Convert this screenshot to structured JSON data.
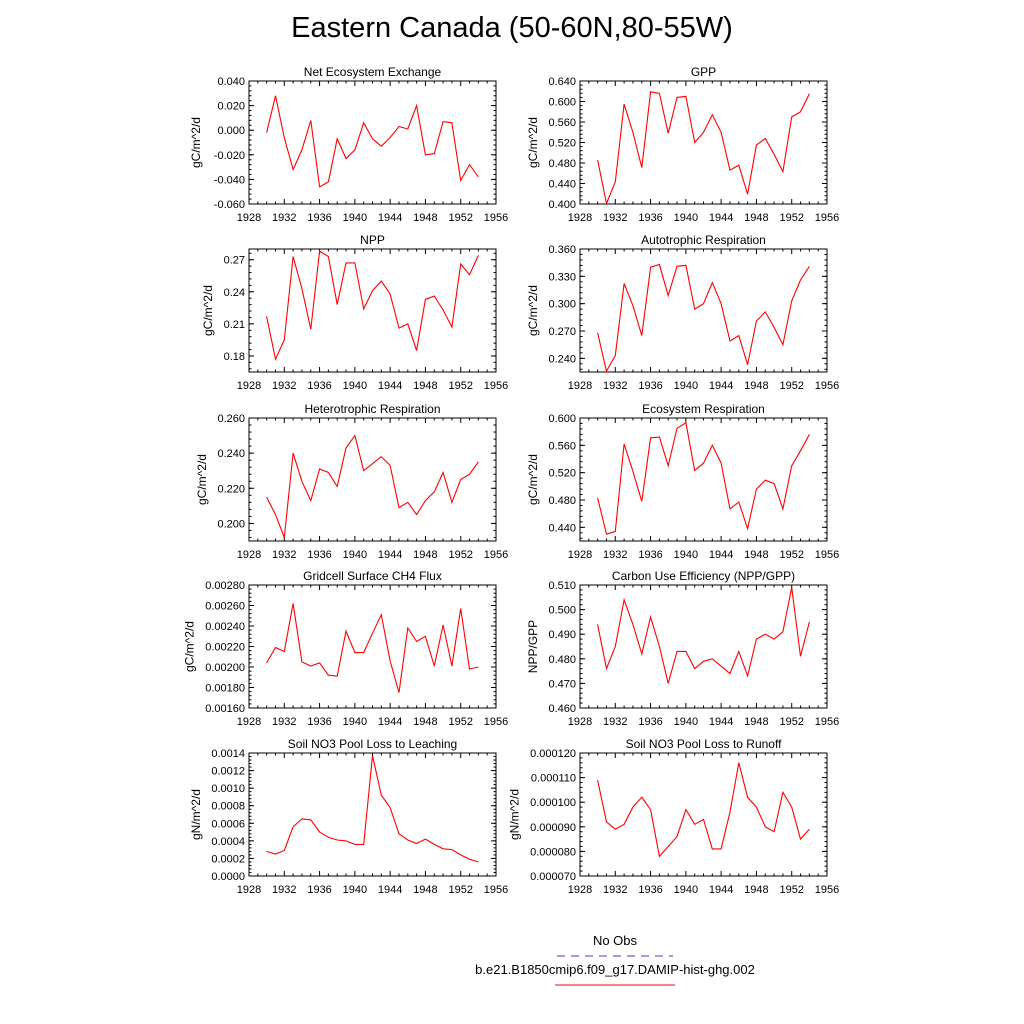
{
  "title": "Eastern Canada (50-60N,80-55W)",
  "legend": {
    "items": [
      {
        "label": "No Obs",
        "color": "#3b3bd6",
        "dash": true
      },
      {
        "label": "b.e21.B1850cmip6.f09_g17.DAMIP-hist-ghg.002",
        "color": "#ff0000",
        "dash": false
      }
    ]
  },
  "chart_data": [
    {
      "type": "line",
      "title": "Net Ecosystem Exchange",
      "xlabel": "",
      "ylabel": "gC/m^2/d",
      "xlim": [
        1928,
        1956
      ],
      "ylim": [
        -0.06,
        0.04
      ],
      "xticks": [
        1928,
        1932,
        1936,
        1940,
        1944,
        1948,
        1952,
        1956
      ],
      "yticks": [
        "-0.060",
        "-0.040",
        "-0.020",
        "0.000",
        "0.020",
        "0.040"
      ],
      "ytick_values": [
        -0.06,
        -0.04,
        -0.02,
        0.0,
        0.02,
        0.04
      ],
      "x": [
        1930,
        1931,
        1932,
        1933,
        1934,
        1935,
        1936,
        1937,
        1938,
        1939,
        1940,
        1941,
        1942,
        1943,
        1944,
        1945,
        1946,
        1947,
        1948,
        1949,
        1950,
        1951,
        1952,
        1953,
        1954
      ],
      "series": [
        {
          "color": "#ff0000",
          "values": [
            -0.002,
            0.028,
            -0.006,
            -0.032,
            -0.016,
            0.008,
            -0.046,
            -0.042,
            -0.007,
            -0.023,
            -0.016,
            0.006,
            -0.007,
            -0.013,
            -0.006,
            0.003,
            0.001,
            0.02,
            -0.02,
            -0.019,
            0.007,
            0.006,
            -0.041,
            -0.028,
            -0.038
          ]
        }
      ]
    },
    {
      "type": "line",
      "title": "GPP",
      "xlabel": "",
      "ylabel": "gC/m^2/d",
      "xlim": [
        1928,
        1956
      ],
      "ylim": [
        0.4,
        0.64
      ],
      "xticks": [
        1928,
        1932,
        1936,
        1940,
        1944,
        1948,
        1952,
        1956
      ],
      "yticks": [
        "0.400",
        "0.440",
        "0.480",
        "0.520",
        "0.560",
        "0.600",
        "0.640"
      ],
      "ytick_values": [
        0.4,
        0.44,
        0.48,
        0.52,
        0.56,
        0.6,
        0.64
      ],
      "x": [
        1930,
        1931,
        1932,
        1933,
        1934,
        1935,
        1936,
        1937,
        1938,
        1939,
        1940,
        1941,
        1942,
        1943,
        1944,
        1945,
        1946,
        1947,
        1948,
        1949,
        1950,
        1951,
        1952,
        1953,
        1954
      ],
      "series": [
        {
          "color": "#ff0000",
          "values": [
            0.486,
            0.401,
            0.443,
            0.595,
            0.54,
            0.471,
            0.619,
            0.616,
            0.538,
            0.608,
            0.61,
            0.52,
            0.54,
            0.574,
            0.54,
            0.466,
            0.476,
            0.419,
            0.515,
            0.528,
            0.497,
            0.463,
            0.57,
            0.58,
            0.615
          ]
        }
      ]
    },
    {
      "type": "line",
      "title": "NPP",
      "xlabel": "",
      "ylabel": "gC/m^2/d",
      "xlim": [
        1928,
        1956
      ],
      "ylim": [
        0.165,
        0.28
      ],
      "xticks": [
        1928,
        1932,
        1936,
        1940,
        1944,
        1948,
        1952,
        1956
      ],
      "yticks": [
        "0.18",
        "0.21",
        "0.24",
        "0.27"
      ],
      "ytick_values": [
        0.18,
        0.21,
        0.24,
        0.27
      ],
      "x": [
        1930,
        1931,
        1932,
        1933,
        1934,
        1935,
        1936,
        1937,
        1938,
        1939,
        1940,
        1941,
        1942,
        1943,
        1944,
        1945,
        1946,
        1947,
        1948,
        1949,
        1950,
        1951,
        1952,
        1953,
        1954
      ],
      "series": [
        {
          "color": "#ff0000",
          "values": [
            0.217,
            0.177,
            0.195,
            0.273,
            0.243,
            0.205,
            0.278,
            0.273,
            0.228,
            0.267,
            0.267,
            0.224,
            0.241,
            0.25,
            0.238,
            0.206,
            0.21,
            0.185,
            0.233,
            0.236,
            0.223,
            0.207,
            0.266,
            0.256,
            0.274
          ]
        }
      ]
    },
    {
      "type": "line",
      "title": "Autotrophic Respiration",
      "xlabel": "",
      "ylabel": "gC/m^2/d",
      "xlim": [
        1928,
        1956
      ],
      "ylim": [
        0.225,
        0.36
      ],
      "xticks": [
        1928,
        1932,
        1936,
        1940,
        1944,
        1948,
        1952,
        1956
      ],
      "yticks": [
        "0.240",
        "0.270",
        "0.300",
        "0.330",
        "0.360"
      ],
      "ytick_values": [
        0.24,
        0.27,
        0.3,
        0.33,
        0.36
      ],
      "x": [
        1930,
        1931,
        1932,
        1933,
        1934,
        1935,
        1936,
        1937,
        1938,
        1939,
        1940,
        1941,
        1942,
        1943,
        1944,
        1945,
        1946,
        1947,
        1948,
        1949,
        1950,
        1951,
        1952,
        1953,
        1954
      ],
      "series": [
        {
          "color": "#ff0000",
          "values": [
            0.268,
            0.226,
            0.243,
            0.322,
            0.298,
            0.265,
            0.34,
            0.343,
            0.309,
            0.341,
            0.342,
            0.294,
            0.3,
            0.323,
            0.3,
            0.259,
            0.265,
            0.233,
            0.281,
            0.291,
            0.274,
            0.255,
            0.303,
            0.326,
            0.341
          ]
        }
      ]
    },
    {
      "type": "line",
      "title": "Heterotrophic Respiration",
      "xlabel": "",
      "ylabel": "gC/m^2/d",
      "xlim": [
        1928,
        1956
      ],
      "ylim": [
        0.19,
        0.26
      ],
      "xticks": [
        1928,
        1932,
        1936,
        1940,
        1944,
        1948,
        1952,
        1956
      ],
      "yticks": [
        "0.200",
        "0.220",
        "0.240",
        "0.260"
      ],
      "ytick_values": [
        0.2,
        0.22,
        0.24,
        0.26
      ],
      "x": [
        1930,
        1931,
        1932,
        1933,
        1934,
        1935,
        1936,
        1937,
        1938,
        1939,
        1940,
        1941,
        1942,
        1943,
        1944,
        1945,
        1946,
        1947,
        1948,
        1949,
        1950,
        1951,
        1952,
        1953,
        1954
      ],
      "series": [
        {
          "color": "#ff0000",
          "values": [
            0.215,
            0.205,
            0.192,
            0.24,
            0.224,
            0.213,
            0.231,
            0.229,
            0.221,
            0.243,
            0.25,
            0.23,
            0.234,
            0.238,
            0.233,
            0.209,
            0.212,
            0.205,
            0.213,
            0.218,
            0.229,
            0.212,
            0.225,
            0.228,
            0.235
          ]
        }
      ]
    },
    {
      "type": "line",
      "title": "Ecosystem Respiration",
      "xlabel": "",
      "ylabel": "gC/m^2/d",
      "xlim": [
        1928,
        1956
      ],
      "ylim": [
        0.42,
        0.6
      ],
      "xticks": [
        1928,
        1932,
        1936,
        1940,
        1944,
        1948,
        1952,
        1956
      ],
      "yticks": [
        "0.440",
        "0.480",
        "0.520",
        "0.560",
        "0.600"
      ],
      "ytick_values": [
        0.44,
        0.48,
        0.52,
        0.56,
        0.6
      ],
      "x": [
        1930,
        1931,
        1932,
        1933,
        1934,
        1935,
        1936,
        1937,
        1938,
        1939,
        1940,
        1941,
        1942,
        1943,
        1944,
        1945,
        1946,
        1947,
        1948,
        1949,
        1950,
        1951,
        1952,
        1953,
        1954
      ],
      "series": [
        {
          "color": "#ff0000",
          "values": [
            0.483,
            0.43,
            0.434,
            0.562,
            0.522,
            0.478,
            0.571,
            0.572,
            0.53,
            0.585,
            0.593,
            0.523,
            0.534,
            0.56,
            0.534,
            0.467,
            0.477,
            0.438,
            0.496,
            0.509,
            0.504,
            0.467,
            0.53,
            0.552,
            0.576
          ]
        }
      ]
    },
    {
      "type": "line",
      "title": "Gridcell Surface CH4 Flux",
      "xlabel": "",
      "ylabel": "gC/m^2/d",
      "xlim": [
        1928,
        1956
      ],
      "ylim": [
        0.0016,
        0.0028
      ],
      "xticks": [
        1928,
        1932,
        1936,
        1940,
        1944,
        1948,
        1952,
        1956
      ],
      "yticks": [
        "0.00160",
        "0.00180",
        "0.00200",
        "0.00220",
        "0.00240",
        "0.00260",
        "0.00280"
      ],
      "ytick_values": [
        0.0016,
        0.0018,
        0.002,
        0.0022,
        0.0024,
        0.0026,
        0.0028
      ],
      "x": [
        1930,
        1931,
        1932,
        1933,
        1934,
        1935,
        1936,
        1937,
        1938,
        1939,
        1940,
        1941,
        1942,
        1943,
        1944,
        1945,
        1946,
        1947,
        1948,
        1949,
        1950,
        1951,
        1952,
        1953,
        1954
      ],
      "series": [
        {
          "color": "#ff0000",
          "values": [
            0.00204,
            0.00219,
            0.00215,
            0.00262,
            0.00205,
            0.00201,
            0.00204,
            0.00192,
            0.00191,
            0.00235,
            0.00214,
            0.00214,
            0.00233,
            0.00251,
            0.00206,
            0.00175,
            0.00238,
            0.00225,
            0.0023,
            0.00201,
            0.00241,
            0.00201,
            0.00257,
            0.00198,
            0.002
          ]
        }
      ]
    },
    {
      "type": "line",
      "title": "Carbon Use Efficiency (NPP/GPP)",
      "xlabel": "",
      "ylabel": "NPP/GPP",
      "xlim": [
        1928,
        1956
      ],
      "ylim": [
        0.46,
        0.51
      ],
      "xticks": [
        1928,
        1932,
        1936,
        1940,
        1944,
        1948,
        1952,
        1956
      ],
      "yticks": [
        "0.460",
        "0.470",
        "0.480",
        "0.490",
        "0.500",
        "0.510"
      ],
      "ytick_values": [
        0.46,
        0.47,
        0.48,
        0.49,
        0.5,
        0.51
      ],
      "x": [
        1930,
        1931,
        1932,
        1933,
        1934,
        1935,
        1936,
        1937,
        1938,
        1939,
        1940,
        1941,
        1942,
        1943,
        1944,
        1945,
        1946,
        1947,
        1948,
        1949,
        1950,
        1951,
        1952,
        1953,
        1954
      ],
      "series": [
        {
          "color": "#ff0000",
          "values": [
            0.494,
            0.476,
            0.485,
            0.504,
            0.494,
            0.482,
            0.497,
            0.485,
            0.47,
            0.483,
            0.483,
            0.476,
            0.479,
            0.48,
            0.477,
            0.474,
            0.483,
            0.473,
            0.488,
            0.49,
            0.488,
            0.491,
            0.509,
            0.481,
            0.495
          ]
        }
      ]
    },
    {
      "type": "line",
      "title": "Soil NO3 Pool Loss to Leaching",
      "xlabel": "",
      "ylabel": "gN/m^2/d",
      "xlim": [
        1928,
        1956
      ],
      "ylim": [
        0.0,
        0.0014
      ],
      "xticks": [
        1928,
        1932,
        1936,
        1940,
        1944,
        1948,
        1952,
        1956
      ],
      "yticks": [
        "0.0000",
        "0.0002",
        "0.0004",
        "0.0006",
        "0.0008",
        "0.0010",
        "0.0012",
        "0.0014"
      ],
      "ytick_values": [
        0.0,
        0.0002,
        0.0004,
        0.0006,
        0.0008,
        0.001,
        0.0012,
        0.0014
      ],
      "x": [
        1930,
        1931,
        1932,
        1933,
        1934,
        1935,
        1936,
        1937,
        1938,
        1939,
        1940,
        1941,
        1942,
        1943,
        1944,
        1945,
        1946,
        1947,
        1948,
        1949,
        1950,
        1951,
        1952,
        1953,
        1954
      ],
      "series": [
        {
          "color": "#ff0000",
          "values": [
            0.00028,
            0.00025,
            0.00029,
            0.00056,
            0.00065,
            0.00064,
            0.0005,
            0.00044,
            0.00041,
            0.0004,
            0.00036,
            0.00036,
            0.00137,
            0.00092,
            0.00078,
            0.00048,
            0.00041,
            0.00037,
            0.00042,
            0.00036,
            0.00031,
            0.0003,
            0.00024,
            0.00019,
            0.00016
          ]
        }
      ]
    },
    {
      "type": "line",
      "title": "Soil NO3 Pool Loss to Runoff",
      "xlabel": "",
      "ylabel": "gN/m^2/d",
      "xlim": [
        1928,
        1956
      ],
      "ylim": [
        7e-05,
        0.00012
      ],
      "xticks": [
        1928,
        1932,
        1936,
        1940,
        1944,
        1948,
        1952,
        1956
      ],
      "yticks": [
        "0.000070",
        "0.000080",
        "0.000090",
        "0.000100",
        "0.000110",
        "0.000120"
      ],
      "ytick_values": [
        7e-05,
        8e-05,
        9e-05,
        0.0001,
        0.00011,
        0.00012
      ],
      "x": [
        1930,
        1931,
        1932,
        1933,
        1934,
        1935,
        1936,
        1937,
        1938,
        1939,
        1940,
        1941,
        1942,
        1943,
        1944,
        1945,
        1946,
        1947,
        1948,
        1949,
        1950,
        1951,
        1952,
        1953,
        1954
      ],
      "series": [
        {
          "color": "#ff0000",
          "values": [
            0.000109,
            9.2e-05,
            8.9e-05,
            9.1e-05,
            9.8e-05,
            0.000102,
            9.7e-05,
            7.8e-05,
            8.2e-05,
            8.6e-05,
            9.7e-05,
            9.1e-05,
            9.3e-05,
            8.1e-05,
            8.1e-05,
            9.6e-05,
            0.000116,
            0.000102,
            9.8e-05,
            9e-05,
            8.8e-05,
            0.000104,
            9.8e-05,
            8.5e-05,
            8.9e-05
          ]
        }
      ]
    }
  ]
}
